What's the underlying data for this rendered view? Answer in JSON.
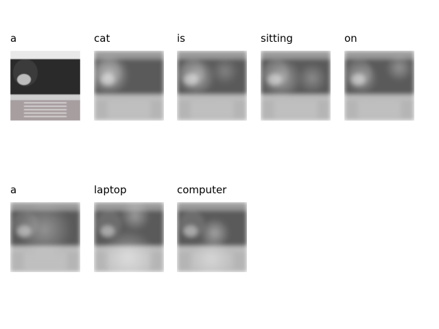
{
  "caption_words": [
    {
      "word": "a",
      "image": "photo-original"
    },
    {
      "word": "cat",
      "image": "attention-map"
    },
    {
      "word": "is",
      "image": "attention-map"
    },
    {
      "word": "sitting",
      "image": "attention-map"
    },
    {
      "word": "on",
      "image": "attention-map"
    },
    {
      "word": "a",
      "image": "attention-map"
    },
    {
      "word": "laptop",
      "image": "attention-map"
    },
    {
      "word": "computer",
      "image": "attention-map"
    }
  ]
}
